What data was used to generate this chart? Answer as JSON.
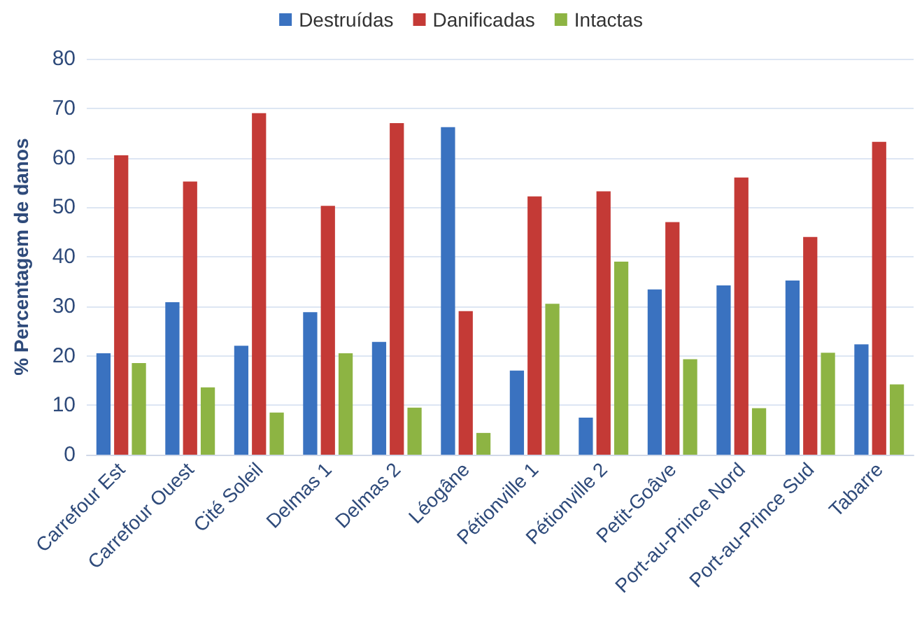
{
  "chart_data": {
    "type": "bar",
    "ylabel": "% Percentagem de danos",
    "categories": [
      "Carrefour Est",
      "Carrefour Ouest",
      "Cité Soleil",
      "Delmas 1",
      "Delmas 2",
      "Léogâne",
      "Pétionville 1",
      "Pétionville 2",
      "Petit-Goâve",
      "Port-au-Prince Nord",
      "Port-au-Prince Sud",
      "Tabarre"
    ],
    "series": [
      {
        "name": "Destruídas",
        "color": "#3a72c0",
        "values": [
          20.5,
          30.8,
          22,
          28.8,
          22.8,
          66.2,
          17,
          7.5,
          33.4,
          34.2,
          35.2,
          22.3
        ]
      },
      {
        "name": "Danificadas",
        "color": "#c43a36",
        "values": [
          60.5,
          55.2,
          69,
          50.3,
          67,
          29,
          52.2,
          53.2,
          47,
          56,
          44,
          63.2
        ]
      },
      {
        "name": "Intactas",
        "color": "#8db443",
        "values": [
          18.5,
          13.6,
          8.5,
          20.5,
          9.5,
          4.4,
          30.5,
          39,
          19.3,
          9.4,
          20.6,
          14.2
        ]
      }
    ],
    "ylim": [
      0,
      80
    ],
    "yticks": [
      0,
      10,
      20,
      30,
      40,
      50,
      60,
      70,
      80
    ],
    "grid": "y",
    "legend": "top"
  }
}
